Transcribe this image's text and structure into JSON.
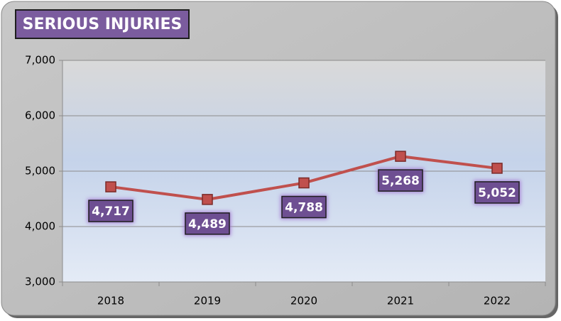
{
  "chart_data": {
    "type": "line",
    "title": "SERIOUS INJURIES",
    "categories": [
      "2018",
      "2019",
      "2020",
      "2021",
      "2022"
    ],
    "values": [
      4717,
      4489,
      4788,
      5268,
      5052
    ],
    "value_labels": [
      "4,717",
      "4,489",
      "4,788",
      "5,268",
      "5,052"
    ],
    "color": "#c0504d",
    "ylim": [
      3000,
      7000
    ],
    "yticks": [
      {
        "value": 3000,
        "label": "3,000"
      },
      {
        "value": 4000,
        "label": "4,000"
      },
      {
        "value": 5000,
        "label": "5,000"
      },
      {
        "value": 6000,
        "label": "6,000"
      },
      {
        "value": 7000,
        "label": "7,000"
      }
    ],
    "grid": true
  }
}
